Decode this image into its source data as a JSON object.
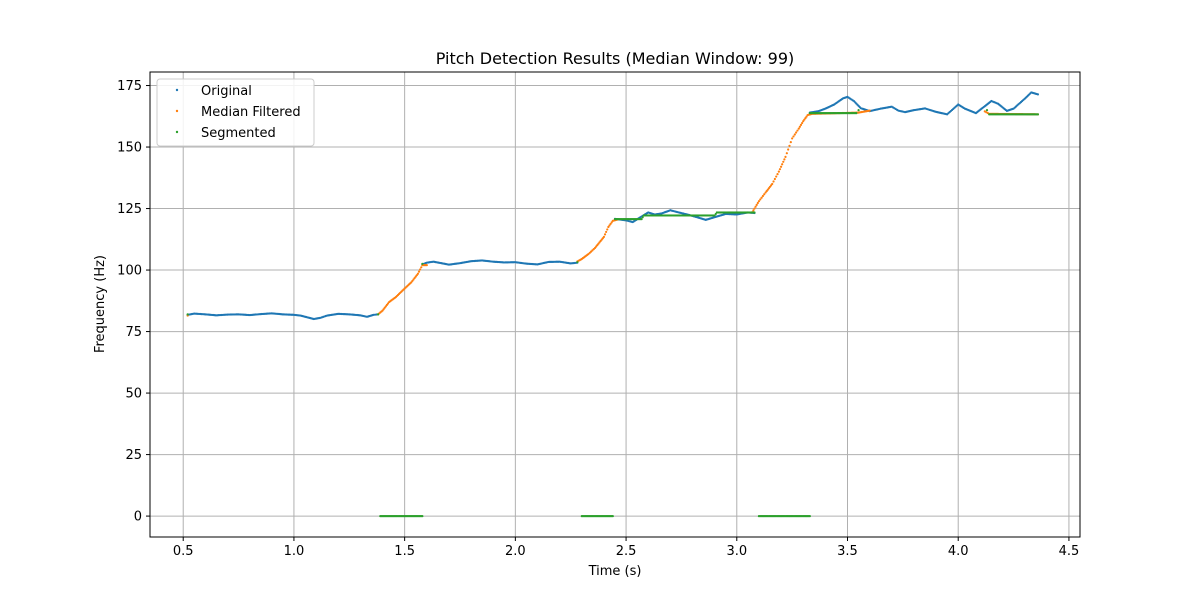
{
  "chart_data": {
    "type": "scatter",
    "title": "Pitch Detection Results (Median Window: 99)",
    "xlabel": "Time (s)",
    "ylabel": "Frequency (Hz)",
    "xlim": [
      0.35,
      4.55
    ],
    "ylim": [
      -8.5,
      180.5
    ],
    "xticks": [
      0.5,
      1.0,
      1.5,
      2.0,
      2.5,
      3.0,
      3.5,
      4.0,
      4.5
    ],
    "xtick_labels": [
      "0.5",
      "1.0",
      "1.5",
      "2.0",
      "2.5",
      "3.0",
      "3.5",
      "4.0",
      "4.5"
    ],
    "yticks": [
      0,
      25,
      50,
      75,
      100,
      125,
      150,
      175
    ],
    "ytick_labels": [
      "0",
      "25",
      "50",
      "75",
      "100",
      "125",
      "150",
      "175"
    ],
    "grid": true,
    "legend_position": "top-left",
    "series": [
      {
        "name": "Original",
        "color": "#1f77b4",
        "points": [
          [
            0.52,
            81.8
          ],
          [
            0.55,
            82.3
          ],
          [
            0.6,
            82.0
          ],
          [
            0.65,
            81.6
          ],
          [
            0.7,
            81.9
          ],
          [
            0.75,
            82.0
          ],
          [
            0.8,
            81.7
          ],
          [
            0.85,
            82.1
          ],
          [
            0.9,
            82.4
          ],
          [
            0.95,
            82.0
          ],
          [
            1.0,
            81.8
          ],
          [
            1.03,
            81.5
          ],
          [
            1.06,
            80.8
          ],
          [
            1.09,
            80.1
          ],
          [
            1.12,
            80.6
          ],
          [
            1.15,
            81.5
          ],
          [
            1.2,
            82.2
          ],
          [
            1.25,
            82.0
          ],
          [
            1.3,
            81.6
          ],
          [
            1.33,
            81.0
          ],
          [
            1.36,
            81.8
          ],
          [
            1.38,
            82.0
          ],
          [
            1.58,
            102.3
          ],
          [
            1.6,
            103.0
          ],
          [
            1.63,
            103.4
          ],
          [
            1.66,
            102.9
          ],
          [
            1.7,
            102.2
          ],
          [
            1.75,
            102.8
          ],
          [
            1.8,
            103.6
          ],
          [
            1.85,
            103.9
          ],
          [
            1.9,
            103.4
          ],
          [
            1.95,
            103.1
          ],
          [
            2.0,
            103.2
          ],
          [
            2.05,
            102.6
          ],
          [
            2.1,
            102.3
          ],
          [
            2.15,
            103.3
          ],
          [
            2.2,
            103.4
          ],
          [
            2.25,
            102.7
          ],
          [
            2.28,
            103.0
          ],
          [
            2.45,
            120.8
          ],
          [
            2.5,
            120.2
          ],
          [
            2.53,
            119.5
          ],
          [
            2.56,
            121.2
          ],
          [
            2.6,
            123.4
          ],
          [
            2.63,
            122.6
          ],
          [
            2.66,
            123.0
          ],
          [
            2.7,
            124.3
          ],
          [
            2.73,
            123.6
          ],
          [
            2.78,
            122.5
          ],
          [
            2.82,
            121.5
          ],
          [
            2.86,
            120.4
          ],
          [
            2.9,
            121.5
          ],
          [
            2.95,
            122.8
          ],
          [
            3.0,
            122.6
          ],
          [
            3.05,
            123.4
          ],
          [
            3.08,
            123.2
          ],
          [
            3.33,
            164.0
          ],
          [
            3.37,
            164.6
          ],
          [
            3.4,
            165.6
          ],
          [
            3.44,
            167.3
          ],
          [
            3.48,
            169.8
          ],
          [
            3.5,
            170.4
          ],
          [
            3.53,
            168.6
          ],
          [
            3.56,
            165.8
          ],
          [
            3.6,
            164.6
          ],
          [
            3.65,
            165.6
          ],
          [
            3.7,
            166.4
          ],
          [
            3.73,
            164.8
          ],
          [
            3.76,
            164.2
          ],
          [
            3.8,
            165.0
          ],
          [
            3.85,
            165.7
          ],
          [
            3.9,
            164.3
          ],
          [
            3.95,
            163.3
          ],
          [
            4.0,
            167.3
          ],
          [
            4.03,
            165.6
          ],
          [
            4.08,
            163.8
          ],
          [
            4.12,
            166.6
          ],
          [
            4.15,
            168.7
          ],
          [
            4.18,
            167.6
          ],
          [
            4.22,
            164.7
          ],
          [
            4.25,
            165.6
          ],
          [
            4.3,
            169.6
          ],
          [
            4.33,
            172.2
          ],
          [
            4.36,
            171.4
          ]
        ]
      },
      {
        "name": "Median Filtered",
        "color": "#ff7f0e",
        "points": [
          [
            0.52,
            81.5
          ],
          [
            1.38,
            82.0
          ],
          [
            1.4,
            83.5
          ],
          [
            1.43,
            87.0
          ],
          [
            1.46,
            89.0
          ],
          [
            1.5,
            92.5
          ],
          [
            1.53,
            95.0
          ],
          [
            1.56,
            98.5
          ],
          [
            1.58,
            102.0
          ],
          [
            1.6,
            102.0
          ],
          [
            2.28,
            103.5
          ],
          [
            2.3,
            104.5
          ],
          [
            2.33,
            106.5
          ],
          [
            2.36,
            109.0
          ],
          [
            2.4,
            113.5
          ],
          [
            2.42,
            117.5
          ],
          [
            2.44,
            120.0
          ],
          [
            2.46,
            120.5
          ],
          [
            3.07,
            123.5
          ],
          [
            3.1,
            128.0
          ],
          [
            3.13,
            131.5
          ],
          [
            3.16,
            135.0
          ],
          [
            3.19,
            140.0
          ],
          [
            3.22,
            146.0
          ],
          [
            3.25,
            153.5
          ],
          [
            3.28,
            157.5
          ],
          [
            3.3,
            160.5
          ],
          [
            3.32,
            163.0
          ],
          [
            3.34,
            163.5
          ],
          [
            3.55,
            164.0
          ],
          [
            3.6,
            164.8
          ],
          [
            4.12,
            164.5
          ],
          [
            4.14,
            163.5
          ],
          [
            4.36,
            163.3
          ]
        ]
      },
      {
        "name": "Segmented",
        "color": "#2ca02c",
        "points": [
          [
            0.52,
            82.0
          ],
          [
            1.38,
            82.0
          ],
          [
            1.58,
            102.5
          ],
          [
            2.28,
            103.2
          ],
          [
            2.45,
            120.7
          ],
          [
            2.57,
            120.7
          ],
          [
            2.58,
            122.2
          ],
          [
            2.9,
            122.2
          ],
          [
            2.91,
            123.4
          ],
          [
            3.08,
            123.4
          ],
          [
            3.33,
            163.8
          ],
          [
            3.54,
            163.8
          ],
          [
            3.55,
            165.0
          ],
          [
            4.13,
            165.0
          ],
          [
            4.14,
            163.3
          ],
          [
            4.36,
            163.3
          ],
          [
            1.39,
            0
          ],
          [
            1.58,
            0
          ],
          [
            2.3,
            0
          ],
          [
            2.44,
            0
          ],
          [
            3.1,
            0
          ],
          [
            3.33,
            0
          ]
        ]
      }
    ]
  }
}
